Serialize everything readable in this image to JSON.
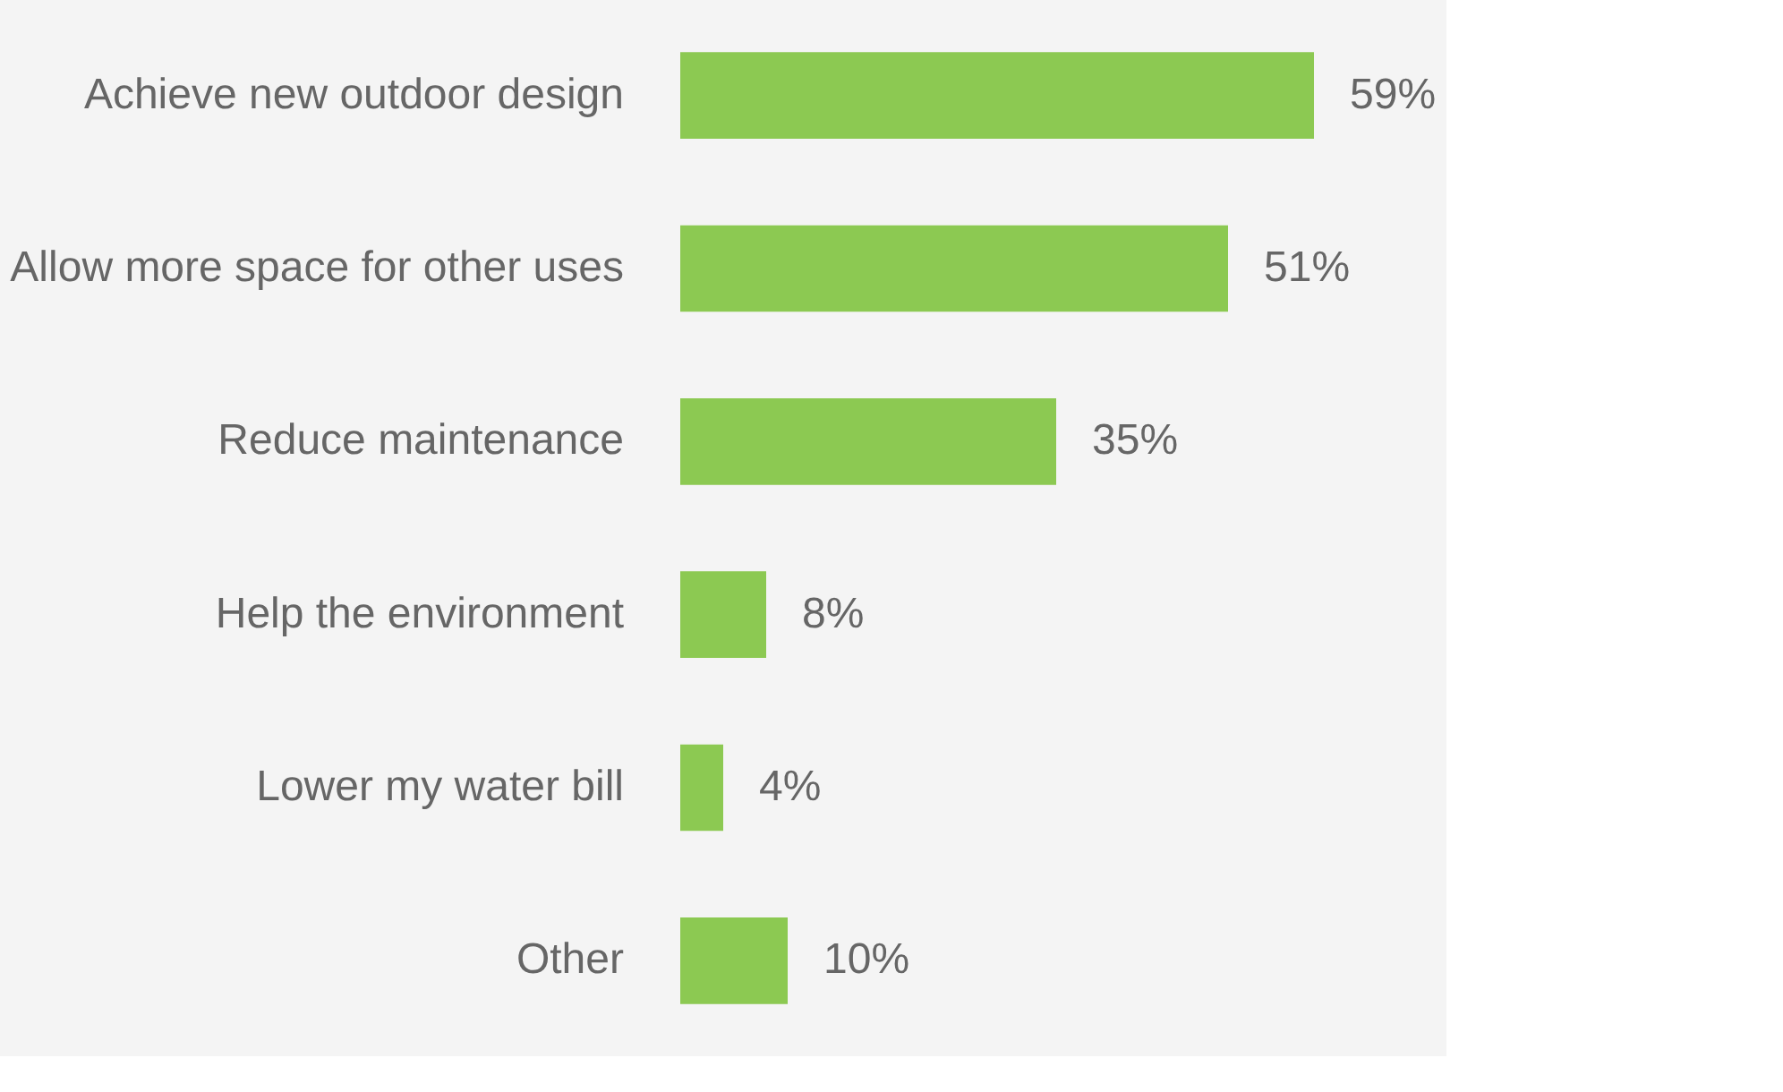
{
  "chart_data": {
    "type": "bar",
    "orientation": "horizontal",
    "categories": [
      "Achieve new outdoor design",
      "Allow more space for other uses",
      "Reduce maintenance",
      "Help the environment",
      "Lower my water bill",
      "Other"
    ],
    "values": [
      59,
      51,
      35,
      8,
      4,
      10
    ],
    "value_labels": [
      "59%",
      "51%",
      "35%",
      "8%",
      "4%",
      "10%"
    ],
    "color": "#8cc952"
  }
}
